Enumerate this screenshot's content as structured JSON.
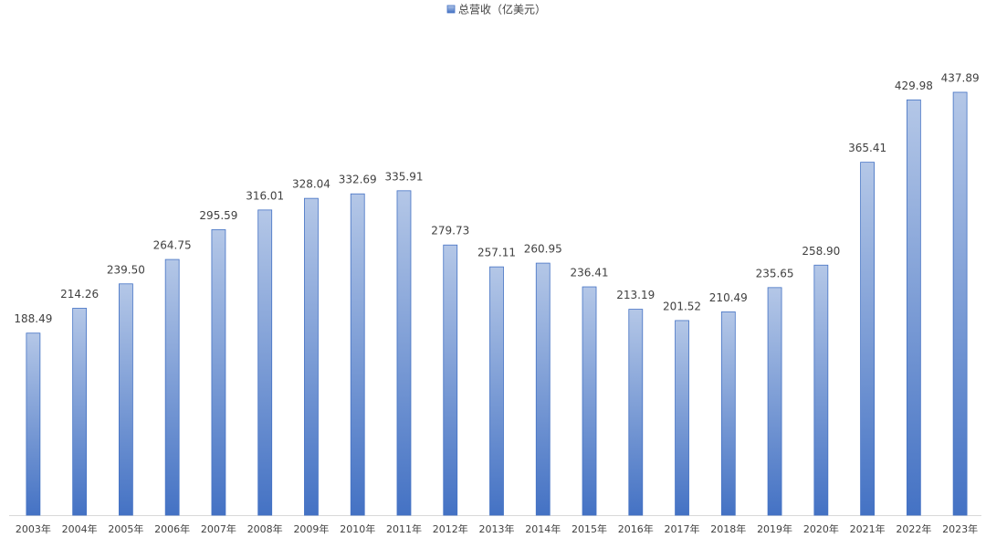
{
  "chart_data": {
    "type": "bar",
    "categories": [
      "2003年",
      "2004年",
      "2005年",
      "2006年",
      "2007年",
      "2008年",
      "2009年",
      "2010年",
      "2011年",
      "2012年",
      "2013年",
      "2014年",
      "2015年",
      "2016年",
      "2017年",
      "2018年",
      "2019年",
      "2020年",
      "2021年",
      "2022年",
      "2023年"
    ],
    "series": [
      {
        "name": "总营收（亿美元）",
        "color": "#4472c4",
        "values": [
          188.49,
          214.26,
          239.5,
          264.75,
          295.59,
          316.01,
          328.04,
          332.69,
          335.91,
          279.73,
          257.11,
          260.95,
          236.41,
          213.19,
          201.52,
          210.49,
          235.65,
          258.9,
          365.41,
          429.98,
          437.89
        ],
        "value_labels": [
          "188.49",
          "214.26",
          "239.50",
          "264.75",
          "295.59",
          "316.01",
          "328.04",
          "332.69",
          "335.91",
          "279.73",
          "257.11",
          "260.95",
          "236.41",
          "213.19",
          "201.52",
          "210.49",
          "235.65",
          "258.90",
          "365.41",
          "429.98",
          "437.89"
        ]
      }
    ],
    "legend": "top",
    "grid": false
  }
}
